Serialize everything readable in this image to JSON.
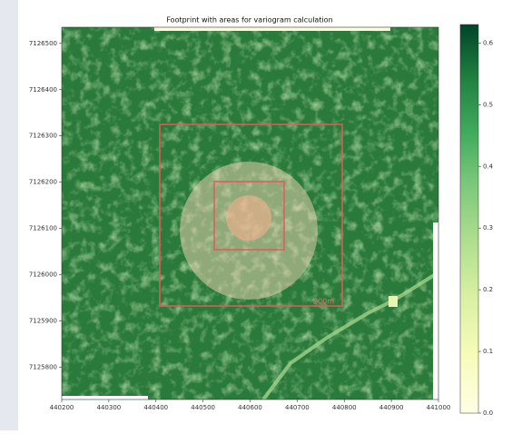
{
  "chart_data": {
    "type": "raster",
    "title": "Footprint with areas for variogram calculation",
    "annotations": [
      "200m"
    ],
    "xlim": [
      440200,
      441000
    ],
    "xticks": [
      440200,
      440300,
      440400,
      440500,
      440600,
      440700,
      440800,
      440900,
      441000
    ],
    "ylim": [
      7125730,
      7126535
    ],
    "yticks": [
      7125800,
      7125900,
      7126000,
      7126100,
      7126200,
      7126300,
      7126400,
      7126500
    ],
    "colorbar": {
      "lim": [
        0,
        0.63
      ],
      "ticks": [
        {
          "value": 0,
          "label": "0.0"
        },
        0.1,
        0.2,
        0.3,
        0.4,
        0.5,
        0.6
      ]
    }
  }
}
